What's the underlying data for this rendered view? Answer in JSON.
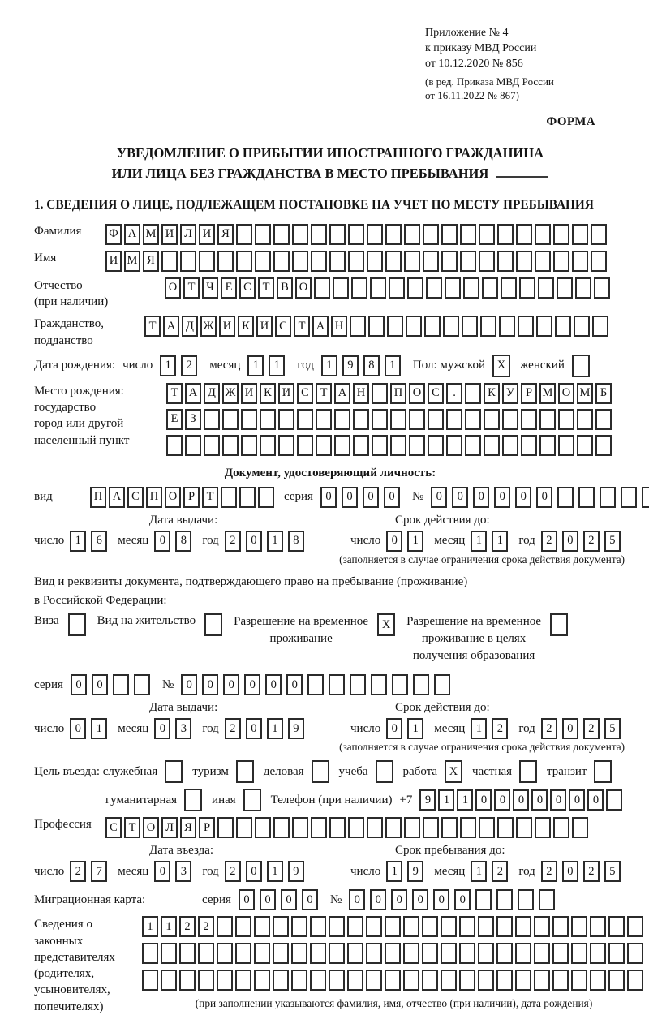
{
  "header": {
    "appendix_lines": [
      "Приложение № 4",
      "к приказу МВД России",
      "от 10.12.2020 № 856"
    ],
    "edition_lines": [
      "(в ред. Приказа МВД России",
      "от 16.11.2022 № 867)"
    ],
    "forma": "ФОРМА"
  },
  "title": {
    "line1": "УВЕДОМЛЕНИЕ О ПРИБЫТИИ ИНОСТРАННОГО ГРАЖДАНИНА",
    "line2": "ИЛИ ЛИЦА БЕЗ ГРАЖДАНСТВА В МЕСТО ПРЕБЫВАНИЯ"
  },
  "section1": {
    "heading": "1. СВЕДЕНИЯ О ЛИЦЕ, ПОДЛЕЖАЩЕМ ПОСТАНОВКЕ НА УЧЕТ ПО МЕСТУ ПРЕБЫВАНИЯ"
  },
  "person": {
    "surname_label": "Фамилия",
    "surname": "ФАМИЛИЯ",
    "name_label": "Имя",
    "name": "ИМЯ",
    "patronymic_label": "Отчество",
    "patronymic_note": "(при наличии)",
    "patronymic": "ОТЧЕСТВО",
    "citizenship_label1": "Гражданство,",
    "citizenship_label2": "подданство",
    "citizenship": "ТАДЖИКИСТАН",
    "birth_date_label": "Дата рождения:",
    "day_label": "число",
    "month_label": "месяц",
    "year_label": "год",
    "birth_day": "12",
    "birth_month": "11",
    "birth_year": "1981",
    "sex_label": "Пол: мужской",
    "male_mark": "X",
    "female_label": "женский",
    "female_mark": "",
    "birth_place_labels": [
      "Место рождения:",
      "государство",
      "город или другой",
      "населенный пункт"
    ],
    "birth_place_row1": "ТАДЖИКИСТАН ПОС. КУРМОМБ",
    "birth_place_row2": "ЕЗ",
    "birth_place_row3": ""
  },
  "identity_doc": {
    "heading": "Документ, удостоверяющий личность:",
    "type_label": "вид",
    "type": "ПАСПОРТ",
    "series_label": "серия",
    "series": "0000",
    "number_label": "№",
    "number": "000000",
    "issue_heading": "Дата выдачи:",
    "issue_day": "16",
    "issue_month": "08",
    "issue_year": "2018",
    "valid_heading": "Срок действия до:",
    "valid_day": "01",
    "valid_month": "11",
    "valid_year": "2025",
    "note": "(заполняется в случае ограничения срока действия документа)"
  },
  "residence_doc": {
    "intro1": "Вид и реквизиты документа, подтверждающего право на пребывание (проживание)",
    "intro2": "в Российской Федерации:",
    "visa_label": "Виза",
    "visa_mark": "",
    "residence_permit_label": "Вид на жительство",
    "residence_permit_mark": "",
    "rvp_label1": "Разрешение на временное",
    "rvp_label2": "проживание",
    "rvp_mark": "X",
    "rvp_edu_label1": "Разрешение на временное",
    "rvp_edu_label2": "проживание в целях",
    "rvp_edu_label3": "получения образования",
    "rvp_edu_mark": "",
    "series_label": "серия",
    "series": "00",
    "number_label": "№",
    "number": "000000",
    "issue_heading": "Дата выдачи:",
    "issue_day": "01",
    "issue_month": "03",
    "issue_year": "2019",
    "valid_heading": "Срок действия до:",
    "valid_day": "01",
    "valid_month": "12",
    "valid_year": "2025",
    "note": "(заполняется в случае ограничения срока действия документа)"
  },
  "visit": {
    "purpose_label": "Цель въезда: служебная",
    "purposes": [
      {
        "label": "туризм",
        "mark": ""
      },
      {
        "label": "деловая",
        "mark": ""
      },
      {
        "label": "учеба",
        "mark": ""
      },
      {
        "label": "работа",
        "mark": "X"
      },
      {
        "label": "частная",
        "mark": ""
      },
      {
        "label": "транзит",
        "mark": ""
      }
    ],
    "first_mark": "",
    "humanitarian_label": "гуманитарная",
    "humanitarian_mark": "",
    "other_label": "иная",
    "other_mark": "",
    "phone_label": "Телефон (при наличии)",
    "phone_prefix": "+7",
    "phone": "9110000000",
    "profession_label": "Профессия",
    "profession": "СТОЛЯР",
    "entry_heading": "Дата въезда:",
    "entry_day": "27",
    "entry_month": "03",
    "entry_year": "2019",
    "stay_heading": "Срок пребывания до:",
    "stay_day": "19",
    "stay_month": "12",
    "stay_year": "2025"
  },
  "migration_card": {
    "label": "Миграционная карта:",
    "series_label": "серия",
    "series": "0000",
    "number_label": "№",
    "number": "000000"
  },
  "legal_reps": {
    "labels": [
      "Сведения о",
      "законных",
      "представителях",
      "(родителях,",
      "усыновителях,",
      "попечителях)"
    ],
    "row1": "1122",
    "row2": "",
    "row3": "",
    "note": "(при заполнении указываются фамилия, имя, отчество (при наличии), дата рождения)"
  }
}
